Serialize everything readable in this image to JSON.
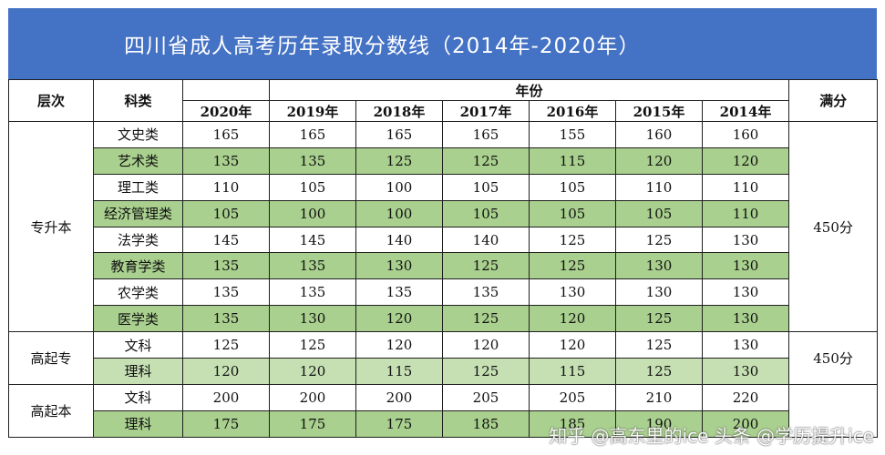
{
  "title": "四川省成人高考历年录取分数线（2014年-2020年）",
  "header": {
    "level": "层次",
    "subject": "科类",
    "year_group": "年份",
    "full_score": "满分",
    "years": [
      "2020年",
      "2019年",
      "2018年",
      "2017年",
      "2016年",
      "2015年",
      "2014年"
    ]
  },
  "groups": [
    {
      "level": "专升本",
      "full_score": "450分",
      "rows": [
        {
          "subject": "文史类",
          "scores": [
            "165",
            "165",
            "165",
            "165",
            "155",
            "160",
            "160"
          ]
        },
        {
          "subject": "艺术类",
          "scores": [
            "135",
            "135",
            "125",
            "125",
            "115",
            "120",
            "120"
          ]
        },
        {
          "subject": "理工类",
          "scores": [
            "110",
            "105",
            "100",
            "105",
            "105",
            "110",
            "110"
          ]
        },
        {
          "subject": "经济管理类",
          "scores": [
            "105",
            "100",
            "100",
            "105",
            "105",
            "105",
            "110"
          ]
        },
        {
          "subject": "法学类",
          "scores": [
            "145",
            "145",
            "140",
            "140",
            "125",
            "125",
            "130"
          ]
        },
        {
          "subject": "教育学类",
          "scores": [
            "135",
            "135",
            "130",
            "125",
            "125",
            "130",
            "130"
          ]
        },
        {
          "subject": "农学类",
          "scores": [
            "135",
            "135",
            "135",
            "135",
            "130",
            "130",
            "130"
          ]
        },
        {
          "subject": "医学类",
          "scores": [
            "135",
            "130",
            "120",
            "125",
            "120",
            "125",
            "130"
          ]
        }
      ]
    },
    {
      "level": "高起专",
      "full_score": "450分",
      "rows": [
        {
          "subject": "文科",
          "scores": [
            "125",
            "125",
            "120",
            "120",
            "120",
            "125",
            "130"
          ]
        },
        {
          "subject": "理科",
          "scores": [
            "120",
            "120",
            "115",
            "125",
            "115",
            "125",
            "130"
          ]
        }
      ]
    },
    {
      "level": "高起本",
      "full_score": "",
      "rows": [
        {
          "subject": "文科",
          "scores": [
            "200",
            "200",
            "200",
            "205",
            "205",
            "210",
            "220"
          ]
        },
        {
          "subject": "理科",
          "scores": [
            "175",
            "175",
            "175",
            "185",
            "185",
            "190",
            "200"
          ]
        }
      ]
    }
  ],
  "watermark": "知乎 @高东里的ice   头条 @学历提升ice",
  "colors": {
    "title_bar": "#4472c4",
    "row_green": "#a9d08e",
    "row_light_green": "#c6e0b4"
  }
}
